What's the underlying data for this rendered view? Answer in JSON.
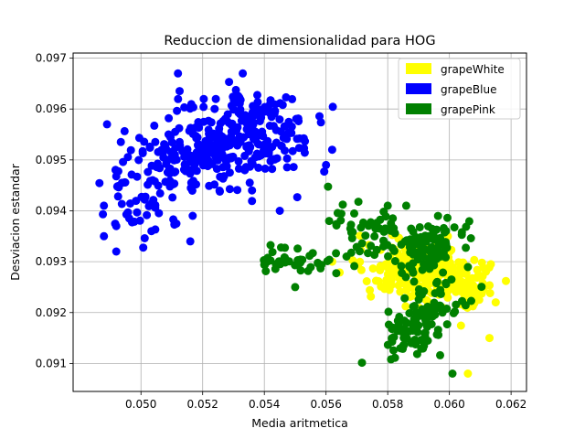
{
  "chart_data": {
    "type": "scatter",
    "title": "Reduccion de dimensionalidad para HOG",
    "xlabel": "Media aritmetica",
    "ylabel": "Desviacion estandar",
    "xlim": [
      0.0478,
      0.0625
    ],
    "ylim": [
      0.09045,
      0.0971
    ],
    "xticks": [
      "0.050",
      "0.052",
      "0.054",
      "0.056",
      "0.058",
      "0.060",
      "0.062"
    ],
    "xtick_values": [
      0.05,
      0.052,
      0.054,
      0.056,
      0.058,
      0.06,
      0.062
    ],
    "yticks": [
      "0.091",
      "0.092",
      "0.093",
      "0.094",
      "0.095",
      "0.096",
      "0.097"
    ],
    "ytick_values": [
      0.091,
      0.092,
      0.093,
      0.094,
      0.095,
      0.096,
      0.097
    ],
    "grid": true,
    "legend_position": "top-right",
    "series": [
      {
        "name": "grapeWhite",
        "color": "#ffff00",
        "clusters": [
          {
            "cx": 0.059,
            "cy": 0.0928,
            "count": 240,
            "sx": 0.00085,
            "sy": 0.0003,
            "rot": -0.45,
            "seed": 11
          },
          {
            "cx": 0.0608,
            "cy": 0.0925,
            "count": 50,
            "sx": 0.0004,
            "sy": 0.00025,
            "rot": -0.4,
            "seed": 12
          }
        ],
        "points": [
          [
            0.0615,
            0.0922
          ],
          [
            0.0606,
            0.0908
          ],
          [
            0.0613,
            0.0915
          ],
          [
            0.0562,
            0.093
          ]
        ]
      },
      {
        "name": "grapeBlue",
        "color": "#0000ff",
        "clusters": [
          {
            "cx": 0.0535,
            "cy": 0.0955,
            "count": 220,
            "sx": 0.0011,
            "sy": 0.0004,
            "rot": 0.0,
            "seed": 21
          },
          {
            "cx": 0.0515,
            "cy": 0.095,
            "count": 130,
            "sx": 0.00085,
            "sy": 0.0004,
            "rot": 0.35,
            "seed": 22
          },
          {
            "cx": 0.05,
            "cy": 0.0942,
            "count": 45,
            "sx": 0.0005,
            "sy": 0.00035,
            "rot": 0.3,
            "seed": 23
          }
        ],
        "points": [
          [
            0.0492,
            0.0932
          ],
          [
            0.0488,
            0.0935
          ],
          [
            0.0489,
            0.0957
          ],
          [
            0.0512,
            0.0967
          ],
          [
            0.0533,
            0.0967
          ],
          [
            0.0562,
            0.0952
          ],
          [
            0.056,
            0.0949
          ],
          [
            0.0516,
            0.0934
          ],
          [
            0.0536,
            0.0944
          ],
          [
            0.0545,
            0.094
          ],
          [
            0.0488,
            0.0941
          ],
          [
            0.0492,
            0.0937
          ]
        ]
      },
      {
        "name": "grapePink",
        "color": "#008000",
        "clusters": [
          {
            "cx": 0.059,
            "cy": 0.0918,
            "count": 110,
            "sx": 0.0005,
            "sy": 0.00045,
            "rot": -0.6,
            "seed": 31
          },
          {
            "cx": 0.0594,
            "cy": 0.0933,
            "count": 90,
            "sx": 0.00055,
            "sy": 0.0003,
            "rot": -0.5,
            "seed": 32
          },
          {
            "cx": 0.0575,
            "cy": 0.0935,
            "count": 60,
            "sx": 0.0008,
            "sy": 0.00025,
            "rot": -0.55,
            "seed": 33
          },
          {
            "cx": 0.055,
            "cy": 0.093,
            "count": 40,
            "sx": 0.0008,
            "sy": 0.00015,
            "rot": -0.1,
            "seed": 34
          }
        ],
        "points": [
          [
            0.0601,
            0.0908
          ],
          [
            0.0541,
            0.093
          ],
          [
            0.055,
            0.0925
          ],
          [
            0.0586,
            0.0941
          ],
          [
            0.058,
            0.0941
          ],
          [
            0.0561,
            0.0938
          ]
        ]
      }
    ]
  }
}
